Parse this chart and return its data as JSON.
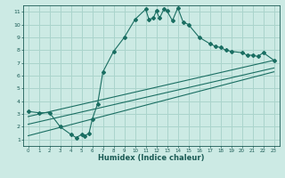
{
  "title": "",
  "xlabel": "Humidex (Indice chaleur)",
  "ylabel": "",
  "bg_color": "#cceae4",
  "grid_color": "#aad4cc",
  "line_color": "#1a6e62",
  "xlim": [
    -0.5,
    23.5
  ],
  "ylim": [
    0.5,
    11.5
  ],
  "xticks": [
    0,
    1,
    2,
    3,
    4,
    5,
    6,
    7,
    8,
    9,
    10,
    11,
    12,
    13,
    14,
    15,
    16,
    17,
    18,
    19,
    20,
    21,
    22,
    23
  ],
  "yticks": [
    1,
    2,
    3,
    4,
    5,
    6,
    7,
    8,
    9,
    10,
    11
  ],
  "main_x": [
    0,
    1,
    2,
    3,
    4,
    4.5,
    5,
    5.3,
    5.7,
    6,
    6.5,
    7,
    8,
    9,
    10,
    11,
    11.3,
    11.7,
    12,
    12.3,
    12.7,
    13,
    13.5,
    14,
    14.5,
    15,
    16,
    17,
    17.5,
    18,
    18.5,
    19,
    20,
    20.5,
    21,
    21.5,
    22,
    23
  ],
  "main_y": [
    3.2,
    3.1,
    3.1,
    2.0,
    1.4,
    1.15,
    1.4,
    1.3,
    1.5,
    2.6,
    3.8,
    6.3,
    7.9,
    9.0,
    10.4,
    11.2,
    10.4,
    10.5,
    11.05,
    10.5,
    11.2,
    11.05,
    10.3,
    11.3,
    10.2,
    10.0,
    9.0,
    8.5,
    8.3,
    8.2,
    8.0,
    7.9,
    7.8,
    7.6,
    7.6,
    7.5,
    7.8,
    7.2
  ],
  "line1_x": [
    0,
    23
  ],
  "line1_y": [
    2.8,
    7.2
  ],
  "line2_x": [
    0,
    23
  ],
  "line2_y": [
    2.2,
    6.6
  ],
  "line3_x": [
    0,
    23
  ],
  "line3_y": [
    1.3,
    6.3
  ]
}
